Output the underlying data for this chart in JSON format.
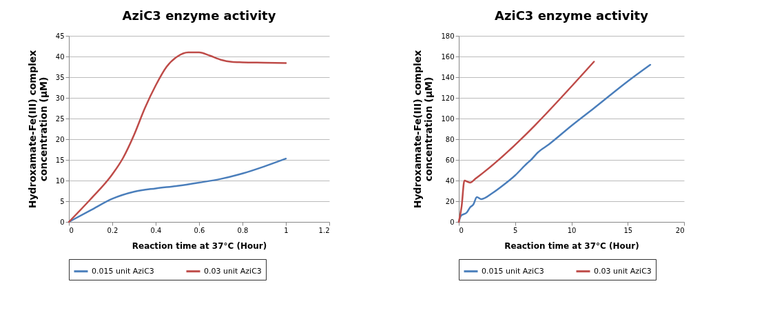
{
  "chart_data": [
    {
      "type": "line",
      "title": "AziC3 enzyme activity",
      "xlabel": "Reaction time at 37°C (Hour)",
      "ylabel": "Hydroxamate-Fe(III) complex concentration (µM)",
      "xlim": [
        0,
        1.2
      ],
      "xticks": [
        0,
        0.2,
        0.4,
        0.6,
        0.8,
        1,
        1.2
      ],
      "ylim": [
        0,
        45
      ],
      "yticks": [
        0,
        5,
        10,
        15,
        20,
        25,
        30,
        35,
        40,
        45
      ],
      "grid": "y",
      "legend": "bottom",
      "marker": "none",
      "line_style": "solid",
      "series": [
        {
          "name": "0.015 unit AziC3",
          "color": "#4a7ebb",
          "x": [
            0,
            0.1,
            0.2,
            0.3,
            0.4,
            0.5,
            0.6,
            0.7,
            0.8,
            0.9,
            1
          ],
          "values": [
            0,
            2.8,
            5.6,
            7.3,
            8.1,
            8.7,
            9.5,
            10.4,
            11.7,
            13.4,
            15.3
          ]
        },
        {
          "name": "0.03 unit AziC3",
          "color": "#be4b48",
          "x": [
            0,
            0.1,
            0.2,
            0.25,
            0.3,
            0.35,
            0.4,
            0.45,
            0.5,
            0.55,
            0.6,
            0.65,
            0.7,
            0.75,
            0.8,
            0.9,
            1
          ],
          "values": [
            0,
            5.5,
            11.5,
            15.5,
            21,
            27.5,
            33,
            37.5,
            40,
            41,
            41,
            40.2,
            39.2,
            38.7,
            38.6,
            38.5,
            38.4
          ]
        }
      ]
    },
    {
      "type": "line",
      "title": "AziC3 enzyme activity",
      "xlabel": "Reaction time at 37°C (Hour)",
      "ylabel": "Hydroxamate-Fe(III) complex concentration (µM)",
      "xlim": [
        0,
        20
      ],
      "xticks": [
        0,
        5,
        10,
        15,
        20
      ],
      "ylim": [
        0,
        180
      ],
      "yticks": [
        0,
        20,
        40,
        60,
        80,
        100,
        120,
        140,
        160,
        180
      ],
      "grid": "y",
      "legend": "bottom",
      "marker": "none",
      "line_style": "solid",
      "series": [
        {
          "name": "0.015 unit AziC3",
          "color": "#4a7ebb",
          "x": [
            0,
            0.2,
            0.7,
            1,
            1.3,
            1.6,
            2,
            3,
            4,
            5,
            6,
            6.5,
            7,
            8,
            10,
            12,
            15,
            17
          ],
          "values": [
            0,
            6,
            9,
            14,
            17,
            24,
            22,
            28,
            36,
            45,
            56,
            61,
            67,
            75,
            93,
            110,
            136,
            152
          ]
        },
        {
          "name": "0.03 unit AziC3",
          "color": "#be4b48",
          "x": [
            0,
            0.25,
            0.5,
            0.75,
            1,
            1.5,
            12
          ],
          "values": [
            0,
            15,
            40,
            39,
            38,
            42,
            155
          ]
        }
      ]
    }
  ]
}
